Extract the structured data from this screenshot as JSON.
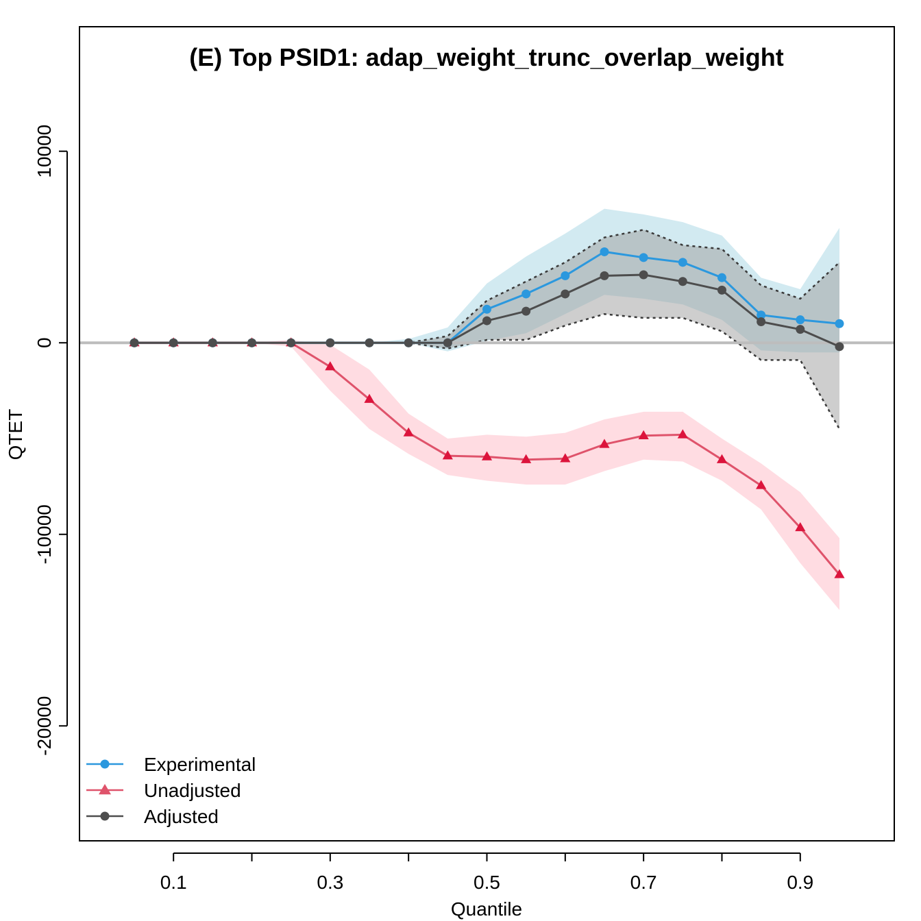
{
  "chart_data": {
    "type": "line",
    "title": "(E) Top PSID1: adap_weight_trunc_overlap_weight",
    "xlabel": "Quantile",
    "ylabel": "QTET",
    "xlim": [
      -0.02,
      1.02
    ],
    "ylim": [
      -26000,
      16500
    ],
    "x_ticks": [
      0.1,
      0.3,
      0.5,
      0.7,
      0.9
    ],
    "x_tick_labels": [
      "0.1",
      "0.3",
      "0.5",
      "0.7",
      "0.9"
    ],
    "y_ticks": [
      10000,
      0,
      -10000,
      -20000
    ],
    "y_tick_labels": [
      "10000",
      "0",
      "-10000",
      "-20000"
    ],
    "grid": false,
    "reference_line": 0,
    "legend_position": "bottom-left",
    "x": [
      0.05,
      0.1,
      0.15,
      0.2,
      0.25,
      0.3,
      0.35,
      0.4,
      0.45,
      0.5,
      0.55,
      0.6,
      0.65,
      0.7,
      0.75,
      0.8,
      0.85,
      0.9,
      0.95
    ],
    "series": [
      {
        "name": "Experimental",
        "color": "#2b98de",
        "band_color": "#add8e6",
        "marker": "circle",
        "values": [
          0,
          0,
          0,
          0,
          0,
          0,
          0,
          0,
          0,
          1750,
          2550,
          3500,
          4750,
          4450,
          4200,
          3400,
          1450,
          1200,
          1000
        ],
        "lower": [
          0,
          0,
          0,
          0,
          0,
          0,
          0,
          0,
          -450,
          100,
          500,
          1500,
          2500,
          2300,
          2000,
          1200,
          -400,
          -500,
          -500
        ],
        "upper": [
          0,
          0,
          0,
          0,
          0,
          0,
          0,
          200,
          800,
          3100,
          4500,
          5700,
          7000,
          6700,
          6300,
          5600,
          3400,
          2800,
          6000
        ]
      },
      {
        "name": "Unadjusted",
        "color": "#df536b",
        "band_color": "#ffc0cb",
        "marker": "triangle",
        "values": [
          0,
          0,
          0,
          0,
          0,
          -1250,
          -2950,
          -4700,
          -5900,
          -5950,
          -6100,
          -6050,
          -5300,
          -4850,
          -4800,
          -6100,
          -7450,
          -9650,
          -12100
        ],
        "lower": [
          0,
          0,
          0,
          0,
          -200,
          -2500,
          -4500,
          -5800,
          -6900,
          -7200,
          -7400,
          -7400,
          -6700,
          -6100,
          -6200,
          -7200,
          -8700,
          -11500,
          -13950
        ],
        "upper": [
          0,
          0,
          0,
          0,
          150,
          -100,
          -1400,
          -3700,
          -5000,
          -4800,
          -4900,
          -4700,
          -4000,
          -3600,
          -3600,
          -5000,
          -6300,
          -7800,
          -10200
        ]
      },
      {
        "name": "Adjusted",
        "color": "#4d4d4d",
        "band_color": "#9e9e9e",
        "marker": "circle",
        "values": [
          0,
          0,
          0,
          0,
          0,
          0,
          0,
          0,
          0,
          1150,
          1650,
          2550,
          3500,
          3550,
          3200,
          2750,
          1100,
          700,
          -200
        ],
        "lower": [
          0,
          0,
          0,
          0,
          0,
          0,
          0,
          0,
          -300,
          150,
          150,
          900,
          1500,
          1300,
          1300,
          600,
          -900,
          -900,
          -4500
        ],
        "upper": [
          0,
          0,
          0,
          0,
          0,
          0,
          0,
          0,
          350,
          2200,
          3200,
          4200,
          5500,
          5900,
          5100,
          4900,
          3000,
          2300,
          4200
        ]
      }
    ]
  }
}
